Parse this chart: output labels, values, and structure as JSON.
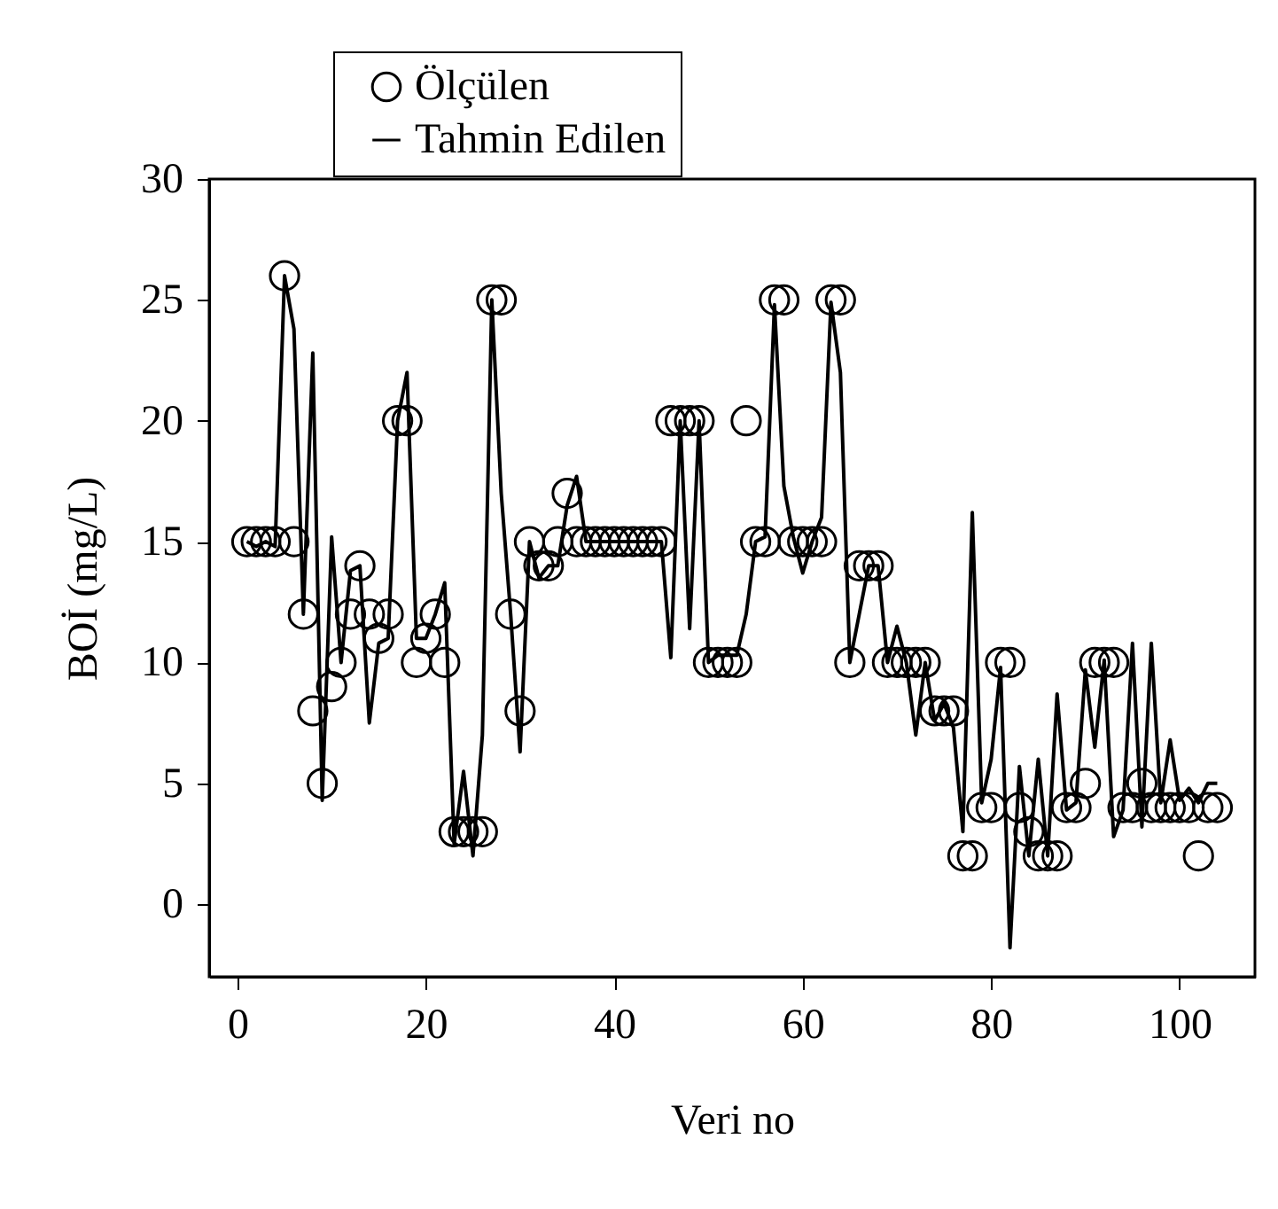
{
  "chart_data": {
    "type": "scatter",
    "xlabel": "Veri no",
    "ylabel": "BOİ (mg/L)",
    "x": [
      1,
      2,
      3,
      4,
      5,
      6,
      7,
      8,
      9,
      10,
      11,
      12,
      13,
      14,
      15,
      16,
      17,
      18,
      19,
      20,
      21,
      22,
      23,
      24,
      25,
      26,
      27,
      28,
      29,
      30,
      31,
      32,
      33,
      34,
      35,
      36,
      37,
      38,
      39,
      40,
      41,
      42,
      43,
      44,
      45,
      46,
      47,
      48,
      49,
      50,
      51,
      52,
      53,
      54,
      55,
      56,
      57,
      58,
      59,
      60,
      61,
      62,
      63,
      64,
      65,
      66,
      67,
      68,
      69,
      70,
      71,
      72,
      73,
      74,
      75,
      76,
      77,
      78,
      79,
      80,
      81,
      82,
      83,
      84,
      85,
      86,
      87,
      88,
      89,
      90,
      91,
      92,
      93,
      94,
      95,
      96,
      97,
      98,
      99,
      100,
      101,
      102,
      103,
      104
    ],
    "series": [
      {
        "name": "Ölçülen",
        "type": "scatter",
        "marker": "circle",
        "color": "#000000",
        "values": [
          15,
          15,
          15,
          15,
          26,
          15,
          12,
          8,
          5,
          9,
          10,
          12,
          14,
          12,
          11,
          12,
          20,
          20,
          10,
          11,
          12,
          10,
          3,
          3,
          3,
          3,
          25,
          25,
          12,
          8,
          15,
          14,
          14,
          15,
          17,
          15,
          15,
          15,
          15,
          15,
          15,
          15,
          15,
          15,
          15,
          20,
          20,
          20,
          20,
          10,
          10,
          10,
          10,
          20,
          15,
          15,
          25,
          25,
          15,
          15,
          15,
          15,
          25,
          25,
          10,
          14,
          14,
          14,
          10,
          10,
          10,
          10,
          10,
          8,
          8,
          8,
          2,
          2,
          4,
          4,
          10,
          10,
          4,
          3,
          2,
          2,
          2,
          4,
          4,
          5,
          10,
          10,
          10,
          4,
          4,
          5,
          4,
          4,
          4,
          4,
          4,
          2,
          4,
          4
        ]
      },
      {
        "name": "Tahmin Edilen",
        "type": "line",
        "marker": "none",
        "line_style": "solid",
        "color": "#000000",
        "values": [
          15,
          14.8,
          15,
          14.8,
          26,
          23.8,
          12,
          22.8,
          4.3,
          15.2,
          10,
          13.8,
          14,
          7.5,
          10.8,
          11,
          20,
          22,
          11,
          11,
          12,
          13.3,
          2.5,
          5.5,
          2,
          7,
          25,
          17,
          12,
          6.3,
          15,
          13.5,
          14,
          14,
          16.5,
          17.7,
          15,
          15,
          15,
          15,
          15,
          15,
          15,
          15,
          15,
          10.2,
          20,
          11.4,
          20,
          10,
          10.3,
          10.3,
          10.3,
          12,
          15,
          15.2,
          24.8,
          17.3,
          15.2,
          13.7,
          15,
          16,
          24.9,
          22,
          10,
          12,
          14,
          14,
          10,
          11.5,
          10,
          7,
          10,
          7.6,
          8.3,
          7.3,
          3,
          16.2,
          4.2,
          6,
          9.8,
          -1.8,
          5.7,
          2,
          6,
          2,
          8.7,
          3.9,
          4.2,
          9.7,
          6.5,
          10.1,
          2.8,
          3.9,
          10.8,
          3.2,
          10.8,
          4.2,
          6.8,
          4.3,
          4.8,
          4.2,
          5,
          5
        ]
      }
    ],
    "xlim": [
      -3,
      108
    ],
    "xticks": [
      0,
      20,
      40,
      60,
      80,
      100
    ],
    "ylim": [
      -3,
      30
    ],
    "yticks": [
      0,
      5,
      10,
      15,
      20,
      25,
      30
    ],
    "grid": false,
    "legend": "top"
  }
}
